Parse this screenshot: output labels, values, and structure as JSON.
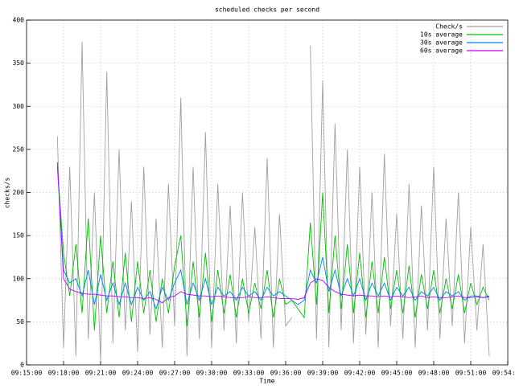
{
  "chart_data": {
    "type": "line",
    "title": "scheduled checks per second",
    "x_label": "Time",
    "y_label": "checks/s",
    "xlim": [
      33300,
      35640
    ],
    "ylim": [
      0,
      400
    ],
    "xticks": [
      {
        "value": 33300,
        "label": "09:15:00"
      },
      {
        "value": 33480,
        "label": "09:18:00"
      },
      {
        "value": 33660,
        "label": "09:21:00"
      },
      {
        "value": 33840,
        "label": "09:24:00"
      },
      {
        "value": 34020,
        "label": "09:27:00"
      },
      {
        "value": 34200,
        "label": "09:30:00"
      },
      {
        "value": 34380,
        "label": "09:33:00"
      },
      {
        "value": 34560,
        "label": "09:36:00"
      },
      {
        "value": 34740,
        "label": "09:39:00"
      },
      {
        "value": 34920,
        "label": "09:42:00"
      },
      {
        "value": 35100,
        "label": "09:45:00"
      },
      {
        "value": 35280,
        "label": "09:48:00"
      },
      {
        "value": 35460,
        "label": "09:51:00"
      },
      {
        "value": 35640,
        "label": "09:54:00"
      }
    ],
    "yticks": [
      0,
      50,
      100,
      150,
      200,
      250,
      300,
      350,
      400
    ],
    "grid": true,
    "legend": "top-right",
    "x": [
      33450,
      33480,
      33510,
      33540,
      33570,
      33600,
      33630,
      33660,
      33690,
      33720,
      33750,
      33780,
      33810,
      33840,
      33870,
      33900,
      33930,
      33960,
      33990,
      34020,
      34050,
      34080,
      34110,
      34140,
      34170,
      34200,
      34230,
      34260,
      34290,
      34320,
      34350,
      34380,
      34410,
      34440,
      34470,
      34500,
      34530,
      34560,
      34590,
      34620,
      34650,
      34680,
      34710,
      34740,
      34770,
      34800,
      34830,
      34860,
      34890,
      34920,
      34950,
      34980,
      35010,
      35040,
      35070,
      35100,
      35130,
      35160,
      35190,
      35220,
      35250,
      35280,
      35310,
      35340,
      35370,
      35400,
      35430,
      35460,
      35490,
      35520,
      35550
    ],
    "series": [
      {
        "name": "Check/s",
        "color": "#a0a0a0",
        "values": [
          265,
          20,
          230,
          10,
          375,
          30,
          200,
          5,
          340,
          25,
          250,
          40,
          190,
          15,
          230,
          35,
          170,
          20,
          210,
          45,
          310,
          10,
          230,
          30,
          270,
          20,
          210,
          40,
          185,
          25,
          200,
          50,
          160,
          30,
          240,
          20,
          175,
          45,
          55,
          null,
          null,
          370,
          30,
          330,
          20,
          280,
          40,
          250,
          25,
          230,
          35,
          200,
          20,
          245,
          45,
          175,
          30,
          210,
          20,
          185,
          40,
          230,
          30,
          170,
          45,
          200,
          25,
          160,
          40,
          140,
          10
        ]
      },
      {
        "name": "10s average",
        "color": "#00c000",
        "values": [
          230,
          130,
          80,
          140,
          60,
          170,
          40,
          150,
          60,
          120,
          55,
          130,
          50,
          120,
          60,
          110,
          50,
          100,
          60,
          115,
          150,
          45,
          120,
          55,
          130,
          50,
          110,
          60,
          105,
          55,
          100,
          60,
          95,
          65,
          110,
          55,
          100,
          70,
          75,
          65,
          55,
          165,
          70,
          200,
          60,
          150,
          65,
          140,
          60,
          130,
          55,
          120,
          60,
          125,
          65,
          110,
          60,
          115,
          55,
          105,
          65,
          110,
          60,
          100,
          65,
          105,
          60,
          95,
          70,
          90,
          75
        ]
      },
      {
        "name": "30s average",
        "color": "#0080ff",
        "values": [
          230,
          110,
          95,
          100,
          80,
          110,
          70,
          105,
          75,
          95,
          70,
          95,
          70,
          90,
          75,
          85,
          65,
          90,
          75,
          95,
          110,
          70,
          95,
          75,
          100,
          70,
          90,
          80,
          85,
          75,
          90,
          80,
          85,
          75,
          90,
          80,
          85,
          80,
          75,
          70,
          75,
          110,
          95,
          125,
          85,
          110,
          80,
          100,
          80,
          100,
          75,
          95,
          80,
          95,
          75,
          90,
          80,
          90,
          75,
          85,
          80,
          90,
          75,
          85,
          80,
          85,
          75,
          80,
          80,
          78,
          80
        ]
      },
      {
        "name": "60s average",
        "color": "#c000ff",
        "values": [
          235,
          100,
          88,
          85,
          83,
          82,
          82,
          81,
          80,
          80,
          79,
          79,
          78,
          78,
          77,
          78,
          76,
          72,
          78,
          80,
          85,
          82,
          81,
          80,
          80,
          79,
          80,
          79,
          78,
          78,
          78,
          79,
          78,
          78,
          79,
          78,
          77,
          77,
          77,
          76,
          78,
          95,
          100,
          98,
          90,
          85,
          82,
          81,
          80,
          81,
          80,
          80,
          79,
          80,
          79,
          80,
          79,
          78,
          79,
          80,
          78,
          79,
          78,
          78,
          79,
          80,
          78,
          78,
          79,
          78,
          79
        ]
      }
    ]
  }
}
